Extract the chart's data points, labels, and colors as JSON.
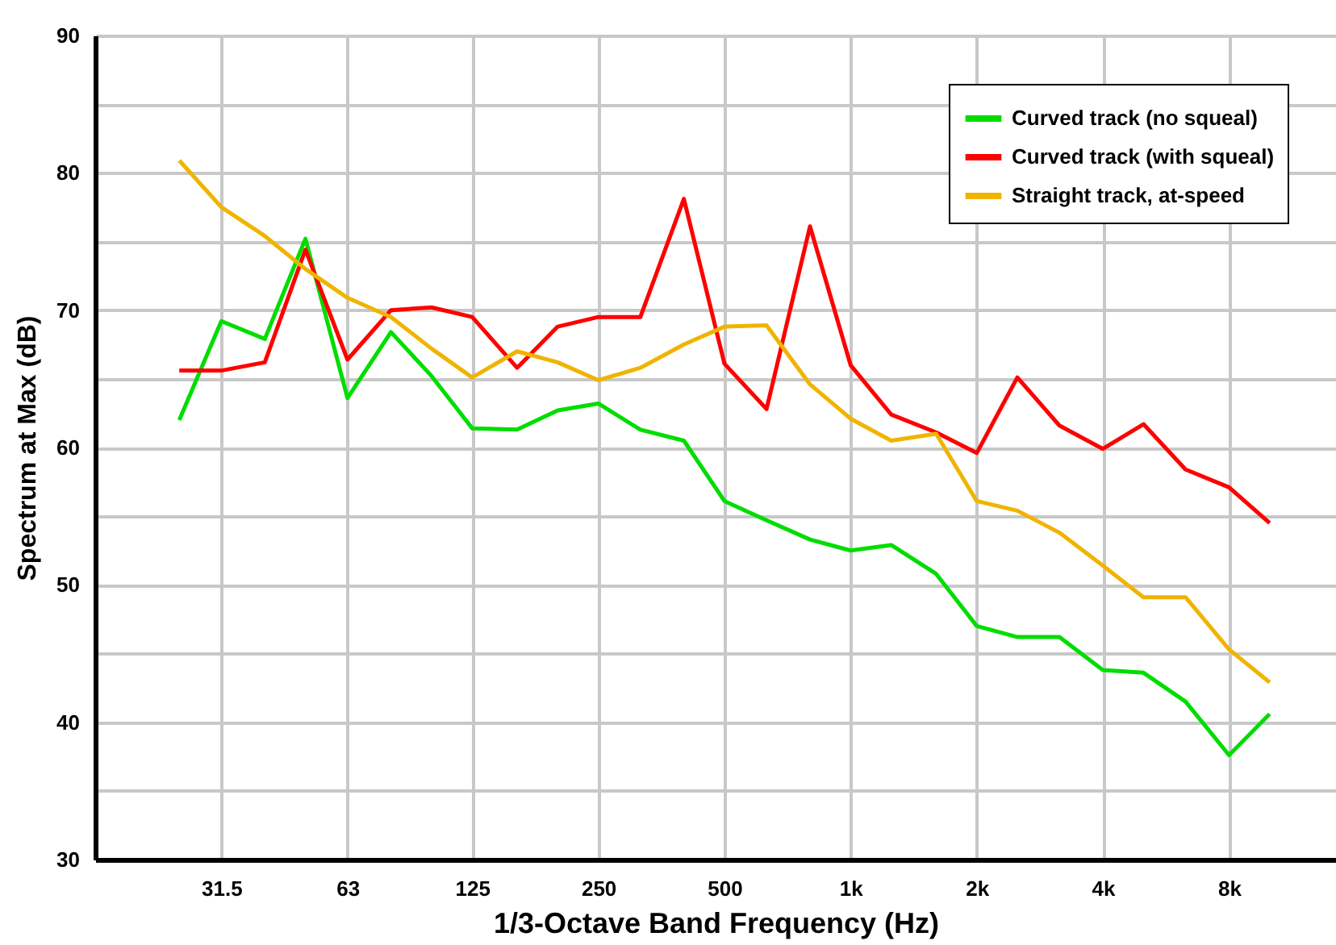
{
  "chart_data": {
    "type": "line",
    "xlabel": "1/3-Octave Band Frequency (Hz)",
    "ylabel": "Spectrum at Max (dB)",
    "x": [
      25,
      31.5,
      40,
      50,
      63,
      80,
      100,
      125,
      160,
      200,
      250,
      315,
      400,
      500,
      630,
      800,
      1000,
      1250,
      1600,
      2000,
      2500,
      3150,
      4000,
      5000,
      6300,
      8000,
      10000
    ],
    "series": [
      {
        "name": "Curved track (no squeal)",
        "color": "#00dd00",
        "values": [
          62.0,
          69.2,
          67.9,
          75.2,
          63.6,
          68.4,
          65.2,
          61.4,
          61.3,
          62.7,
          63.2,
          61.3,
          60.5,
          56.1,
          54.7,
          53.3,
          52.5,
          52.9,
          50.8,
          47.0,
          46.2,
          46.2,
          43.8,
          43.6,
          41.5,
          37.6,
          40.6
        ]
      },
      {
        "name": "Curved track (with squeal)",
        "color": "#ff0000",
        "values": [
          65.6,
          65.6,
          66.2,
          74.4,
          66.4,
          70.0,
          70.2,
          69.5,
          65.8,
          68.8,
          69.5,
          69.5,
          78.1,
          66.1,
          62.8,
          76.1,
          66.0,
          62.4,
          61.1,
          59.6,
          65.1,
          61.6,
          59.9,
          61.7,
          58.4,
          57.1,
          54.5
        ]
      },
      {
        "name": "Straight track, at-speed",
        "color": "#f0b400",
        "values": [
          80.9,
          77.5,
          75.4,
          73.0,
          70.9,
          69.5,
          67.2,
          65.1,
          67.0,
          66.2,
          64.9,
          65.8,
          67.5,
          68.8,
          68.9,
          64.6,
          62.1,
          60.5,
          61.0,
          56.1,
          55.4,
          53.8,
          51.4,
          49.1,
          49.1,
          45.3,
          42.9
        ]
      }
    ],
    "log": "x",
    "xlim": [
      15.75,
      14400
    ],
    "xticks": [
      31.5,
      63,
      125,
      250,
      500,
      {
        "value": 1000,
        "label": "1k"
      },
      {
        "value": 2000,
        "label": "2k"
      },
      {
        "value": 4000,
        "label": "4k"
      },
      {
        "value": 8000,
        "label": "8k"
      }
    ],
    "ylim": [
      30,
      90
    ],
    "yticks": [
      30,
      {
        "value": 35,
        "label": null
      },
      40,
      {
        "value": 45,
        "label": null
      },
      50,
      {
        "value": 55,
        "label": null
      },
      60,
      {
        "value": 65,
        "label": null
      },
      70,
      {
        "value": 75,
        "label": null
      },
      80,
      {
        "value": 85,
        "label": null
      },
      90
    ],
    "grid": true,
    "legend": "top right",
    "marker": "none",
    "line_style": "solid"
  }
}
